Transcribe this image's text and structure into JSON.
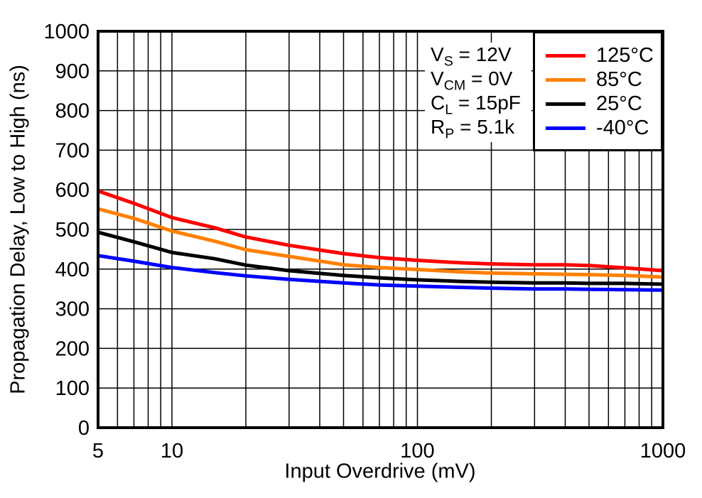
{
  "chart_data": {
    "type": "line",
    "title": "",
    "xlabel": "Input Overdrive (mV)",
    "ylabel": "Propagation Delay, Low to High (ns)",
    "x_scale": "log",
    "xlim": [
      5,
      1000
    ],
    "ylim": [
      0,
      1000
    ],
    "grid": true,
    "legend_position": "top-right",
    "x_ticks": [
      5,
      10,
      100,
      1000
    ],
    "y_ticks": [
      0,
      100,
      200,
      300,
      400,
      500,
      600,
      700,
      800,
      900,
      1000
    ],
    "x": [
      5,
      7,
      10,
      15,
      20,
      30,
      50,
      70,
      100,
      150,
      200,
      300,
      400,
      500,
      700,
      1000
    ],
    "series": [
      {
        "name": "125°C",
        "color": "#ff0000",
        "values": [
          597,
          566,
          530,
          504,
          481,
          460,
          439,
          429,
          422,
          416,
          413,
          411,
          411,
          409,
          403,
          396
        ]
      },
      {
        "name": "85°C",
        "color": "#ff8000",
        "values": [
          552,
          528,
          496,
          470,
          449,
          432,
          411,
          404,
          399,
          393,
          390,
          388,
          387,
          386,
          384,
          380
        ]
      },
      {
        "name": "25°C",
        "color": "#000000",
        "values": [
          493,
          469,
          442,
          426,
          410,
          396,
          384,
          378,
          373,
          369,
          367,
          365,
          365,
          364,
          364,
          362
        ]
      },
      {
        "name": "-40°C",
        "color": "#0000ff",
        "values": [
          434,
          420,
          404,
          391,
          383,
          374,
          365,
          360,
          357,
          354,
          352,
          350,
          350,
          349,
          348,
          347
        ]
      }
    ],
    "annotations": [
      {
        "base": "V",
        "sub": "S",
        "rest": " = 12V"
      },
      {
        "base": "V",
        "sub": "CM",
        "rest": " = 0V"
      },
      {
        "base": "C",
        "sub": "L",
        "rest": " = 15pF"
      },
      {
        "base": "R",
        "sub": "P",
        "rest": " = 5.1k"
      }
    ]
  }
}
